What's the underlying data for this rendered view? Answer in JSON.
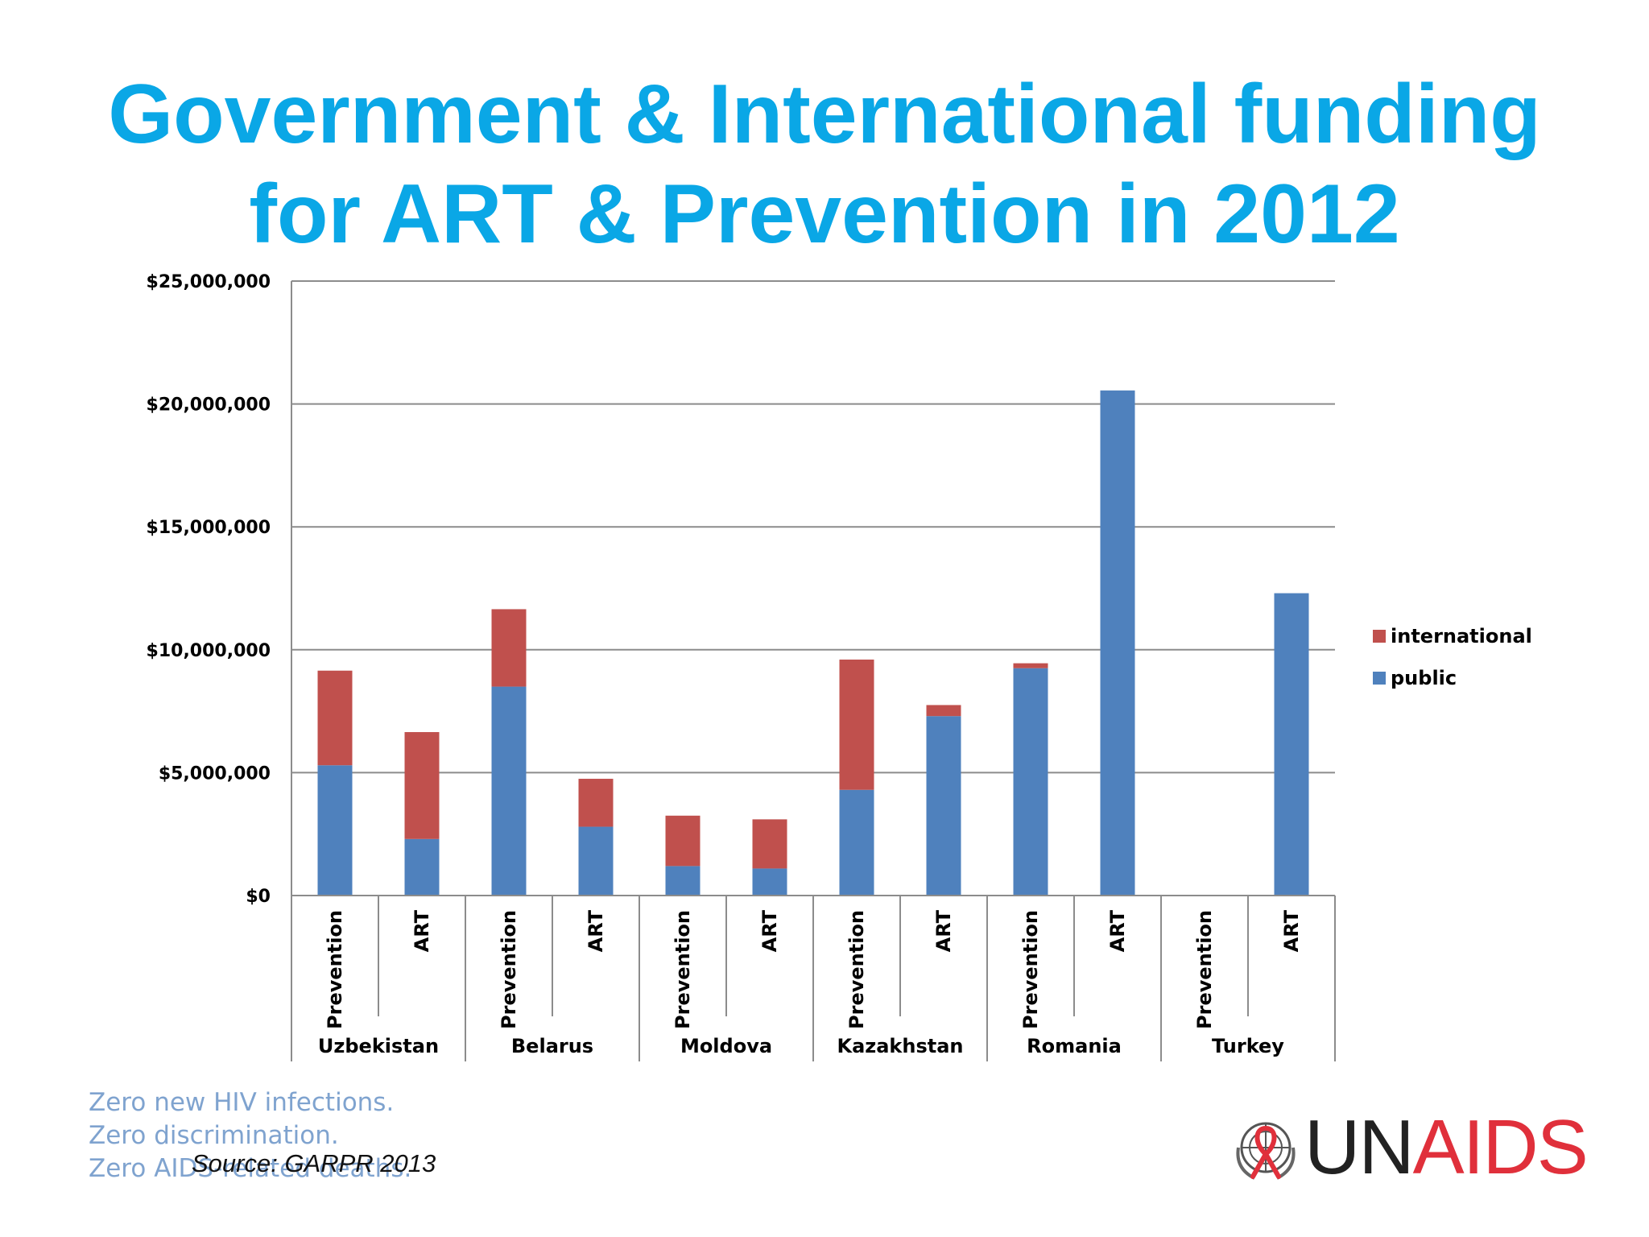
{
  "slide": {
    "title_line1": "Government & International funding",
    "title_line2": "for ART & Prevention in 2012",
    "tagline": [
      "Zero new HIV infections.",
      "Zero discrimination.",
      "Zero AIDS-related deaths."
    ],
    "source": "Source: GARPR 2013",
    "logo_un": "UN",
    "logo_aids": "AIDS",
    "title_color": "#0aa7e6"
  },
  "chart_data": {
    "type": "bar",
    "stacked": true,
    "title": "",
    "xlabel": "",
    "ylabel": "",
    "ylim": [
      0,
      25000000
    ],
    "yticks": [
      0,
      5000000,
      10000000,
      15000000,
      20000000,
      25000000
    ],
    "ytick_labels": [
      "$0",
      "$5,000,000",
      "$10,000,000",
      "$15,000,000",
      "$20,000,000",
      "$25,000,000"
    ],
    "grid": true,
    "legend_position": "right",
    "categories": [
      "Prevention",
      "ART",
      "Prevention",
      "ART",
      "Prevention",
      "ART",
      "Prevention",
      "ART",
      "Prevention",
      "ART",
      "Prevention",
      "ART"
    ],
    "groups": [
      {
        "name": "Uzbekistan",
        "span": 2
      },
      {
        "name": "Belarus",
        "span": 2
      },
      {
        "name": "Moldova",
        "span": 2
      },
      {
        "name": "Kazakhstan",
        "span": 2
      },
      {
        "name": "Romania",
        "span": 2
      },
      {
        "name": "Turkey",
        "span": 2
      }
    ],
    "series": [
      {
        "name": "public",
        "color": "#4f81bd",
        "values": [
          5300000,
          2300000,
          8500000,
          2800000,
          1200000,
          1100000,
          4300000,
          7300000,
          9250000,
          20550000,
          0,
          12300000
        ]
      },
      {
        "name": "international",
        "color": "#c0504d",
        "values": [
          3850000,
          4350000,
          3150000,
          1950000,
          2050000,
          2000000,
          5300000,
          450000,
          200000,
          0,
          0,
          0
        ]
      }
    ],
    "legend_order": [
      "international",
      "public"
    ]
  }
}
